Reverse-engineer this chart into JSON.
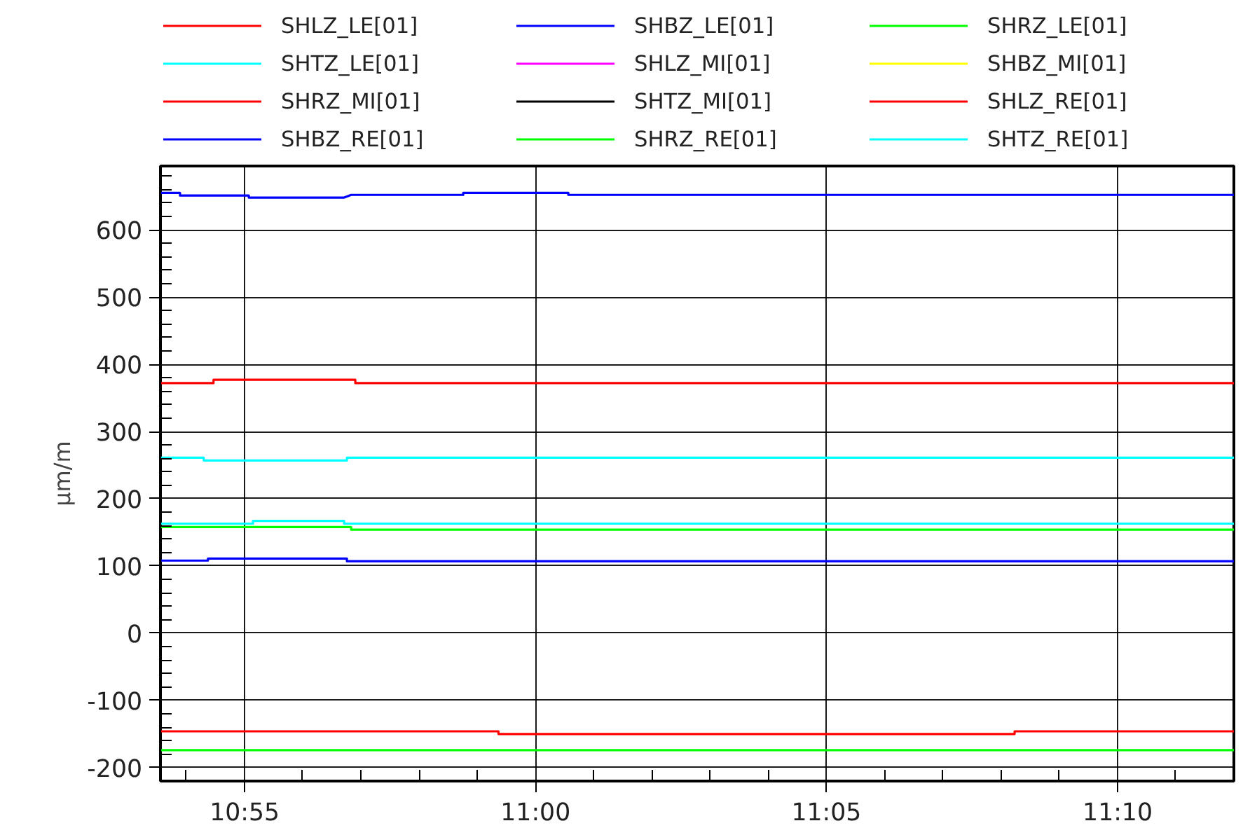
{
  "chart_data": {
    "type": "line",
    "ylabel": "µm/m",
    "legend": "top",
    "grid": true,
    "line_style": "solid",
    "marker": "none",
    "xlim": [
      10.8926,
      11.2
    ],
    "ylim": [
      -220,
      695
    ],
    "xticks": [
      {
        "value": 10.9,
        "label": null
      },
      {
        "value": 10.9167,
        "label": "10:55"
      },
      {
        "value": 10.9333,
        "label": null
      },
      {
        "value": 10.95,
        "label": null
      },
      {
        "value": 10.9667,
        "label": null
      },
      {
        "value": 10.9833,
        "label": null
      },
      {
        "value": 11.0,
        "label": "11:00"
      },
      {
        "value": 11.0167,
        "label": null
      },
      {
        "value": 11.0333,
        "label": null
      },
      {
        "value": 11.05,
        "label": null
      },
      {
        "value": 11.0667,
        "label": null
      },
      {
        "value": 11.0833,
        "label": "11:05"
      },
      {
        "value": 11.1,
        "label": null
      },
      {
        "value": 11.1167,
        "label": null
      },
      {
        "value": 11.1333,
        "label": null
      },
      {
        "value": 11.15,
        "label": null
      },
      {
        "value": 11.1667,
        "label": "11:10"
      },
      {
        "value": 11.1833,
        "label": null
      }
    ],
    "yticks": [
      {
        "value": -180,
        "label": null
      },
      {
        "value": -160,
        "label": null
      },
      {
        "value": -140,
        "label": null
      },
      {
        "value": -120,
        "label": null
      },
      {
        "value": -80,
        "label": null
      },
      {
        "value": -60,
        "label": null
      },
      {
        "value": -40,
        "label": null
      },
      {
        "value": -20,
        "label": null
      },
      {
        "value": 20,
        "label": null
      },
      {
        "value": 40,
        "label": null
      },
      {
        "value": 60,
        "label": null
      },
      {
        "value": 80,
        "label": null
      },
      {
        "value": 120,
        "label": null
      },
      {
        "value": 140,
        "label": null
      },
      {
        "value": 160,
        "label": null
      },
      {
        "value": 180,
        "label": null
      },
      {
        "value": 220,
        "label": null
      },
      {
        "value": 240,
        "label": null
      },
      {
        "value": 260,
        "label": null
      },
      {
        "value": 280,
        "label": null
      },
      {
        "value": 320,
        "label": null
      },
      {
        "value": 340,
        "label": null
      },
      {
        "value": 360,
        "label": null
      },
      {
        "value": 380,
        "label": null
      },
      {
        "value": 420,
        "label": null
      },
      {
        "value": 440,
        "label": null
      },
      {
        "value": 460,
        "label": null
      },
      {
        "value": 480,
        "label": null
      },
      {
        "value": 520,
        "label": null
      },
      {
        "value": 540,
        "label": null
      },
      {
        "value": 560,
        "label": null
      },
      {
        "value": 580,
        "label": null
      },
      {
        "value": 620,
        "label": null
      },
      {
        "value": 640,
        "label": null
      },
      {
        "value": 660,
        "label": null
      },
      {
        "value": 680,
        "label": null
      },
      -200,
      -100,
      0,
      100,
      200,
      300,
      400,
      500,
      600
    ],
    "series": [
      {
        "name": "SHLZ_LE[01]",
        "color": "#ff0000",
        "x": [
          10.8926,
          10.9078,
          10.9078,
          10.9484,
          10.9484,
          11.2
        ],
        "values": [
          372,
          372,
          377,
          377,
          372,
          372
        ]
      },
      {
        "name": "SHBZ_LE[01]",
        "color": "#0000ff",
        "x": [
          10.8926,
          10.8982,
          10.8982,
          10.9179,
          10.9179,
          10.9452,
          10.9472,
          10.9793,
          10.9793,
          11.0094,
          11.0094,
          11.2
        ],
        "values": [
          655,
          655,
          651,
          651,
          648,
          648,
          652,
          652,
          655,
          655,
          652,
          652
        ]
      },
      {
        "name": "SHRZ_LE[01]",
        "color": "#00ff00",
        "x": [
          10.8926,
          10.9472,
          10.9472,
          11.2
        ],
        "values": [
          158,
          158,
          154,
          154
        ]
      },
      {
        "name": "SHTZ_LE[01]",
        "color": "#00ffff",
        "x": [
          10.8926,
          10.905,
          10.905,
          10.946,
          10.946,
          11.2
        ],
        "values": [
          261,
          261,
          257,
          257,
          261,
          261
        ]
      },
      {
        "name": "SHLZ_MI[01]",
        "color": "#ff00ff"
      },
      {
        "name": "SHBZ_MI[01]",
        "color": "#ffff00"
      },
      {
        "name": "SHRZ_MI[01]",
        "color": "#ff0000"
      },
      {
        "name": "SHTZ_MI[01]",
        "color": "#000000"
      },
      {
        "name": "SHLZ_RE[01]",
        "color": "#ff0000",
        "x": [
          10.8926,
          10.9894,
          10.9894,
          11.1372,
          11.1372,
          11.2
        ],
        "values": [
          -146,
          -146,
          -150,
          -150,
          -146,
          -146
        ]
      },
      {
        "name": "SHBZ_RE[01]",
        "color": "#0000ff",
        "x": [
          10.8926,
          10.9062,
          10.9062,
          10.946,
          10.946,
          11.2
        ],
        "values": [
          108,
          108,
          111,
          111,
          107,
          107
        ]
      },
      {
        "name": "SHRZ_RE[01]",
        "color": "#00ff00",
        "x": [
          10.8926,
          11.2
        ],
        "values": [
          -174,
          -174
        ]
      },
      {
        "name": "SHTZ_RE[01]",
        "color": "#00ffff",
        "x": [
          10.8926,
          10.9191,
          10.9191,
          10.9452,
          10.9452,
          11.2
        ],
        "values": [
          163,
          163,
          167,
          167,
          163,
          163
        ]
      }
    ]
  }
}
